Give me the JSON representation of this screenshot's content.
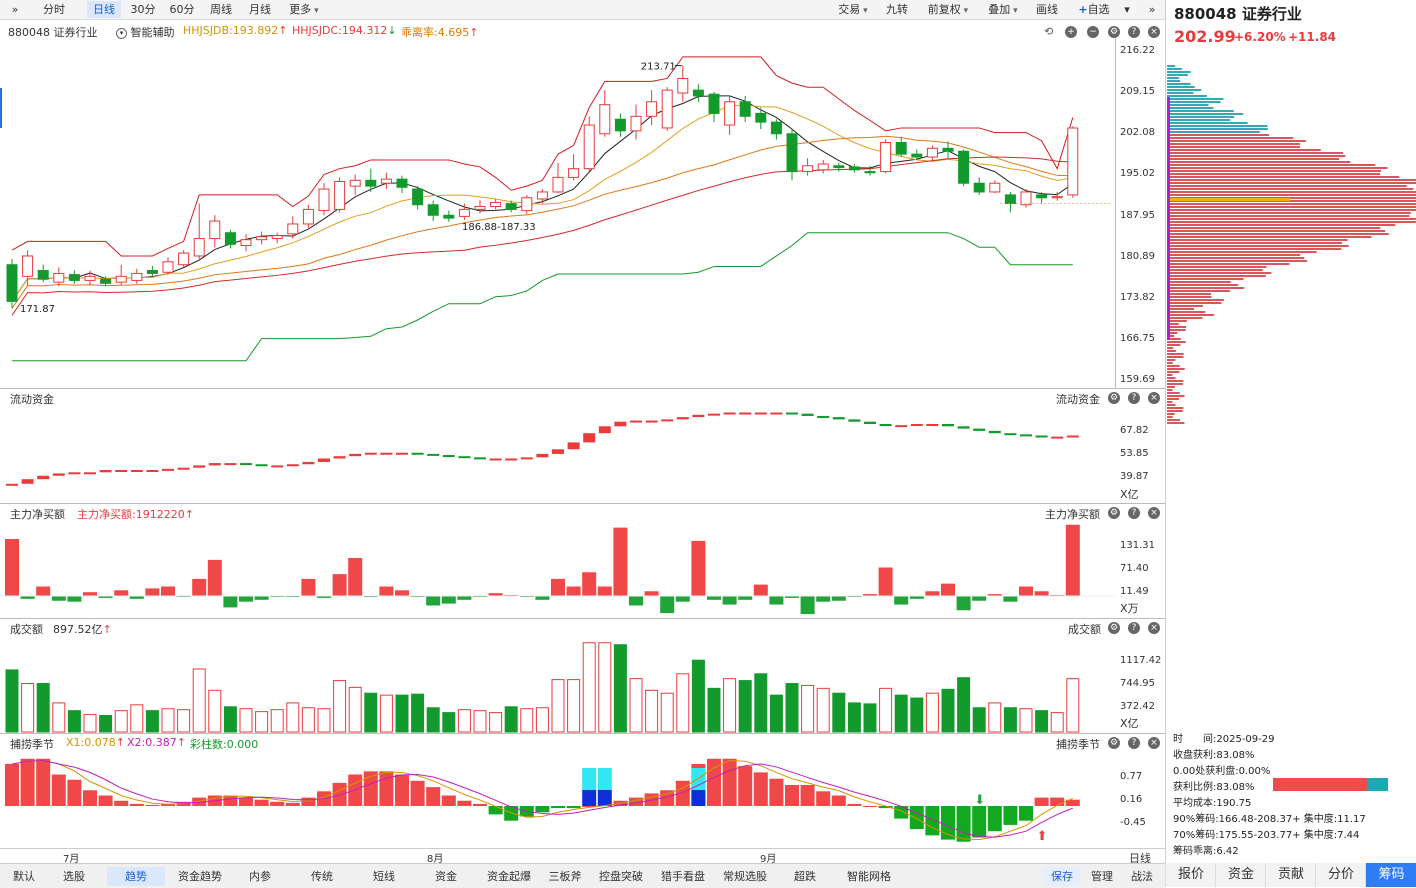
{
  "toolbar": {
    "left_items": [
      "分时",
      "日线",
      "30分",
      "60分",
      "周线",
      "月线",
      "更多"
    ],
    "active": "日线",
    "right_items": [
      "交易",
      "九转",
      "前复权",
      "叠加",
      "画线",
      "自选"
    ]
  },
  "main_chart": {
    "code": "880048",
    "name": "证券行业",
    "assist": "智能辅助",
    "ind1": "HHJSJDB:193.892",
    "ind2": "HHJSJDC:194.312",
    "ind3": "乖离率:4.695",
    "y_labels": [
      "216.22",
      "209.15",
      "202.08",
      "195.02",
      "187.95",
      "180.89",
      "173.82",
      "166.75",
      "159.69"
    ],
    "high_label": "213.71",
    "low_label": "171.87",
    "mid_label": "186.88-187.33"
  },
  "pane_flow": {
    "title": "流动资金",
    "right_title": "流动资金",
    "y_labels": [
      "67.82",
      "53.85",
      "39.87"
    ],
    "unit": "X亿"
  },
  "pane_main_net": {
    "title": "主力净买额",
    "value": "主力净买额:1912220",
    "right_title": "主力净买额",
    "y_labels": [
      "131.31",
      "71.40",
      "11.49"
    ],
    "unit": "X万"
  },
  "pane_turnover": {
    "title": "成交额",
    "value": "897.52亿",
    "right_title": "成交额",
    "y_labels": [
      "1117.42",
      "744.95",
      "372.42"
    ],
    "unit": "X亿"
  },
  "pane_season": {
    "title": "捕捞季节",
    "x1": "X1:0.078",
    "x2": "X2:0.387",
    "bars": "彩柱数:0.000",
    "right_title": "捕捞季节",
    "y_labels": [
      "0.77",
      "0.16",
      "-0.45"
    ]
  },
  "x_months": [
    "7月",
    "8月",
    "9月"
  ],
  "x_period": "日线",
  "bottom_tabs": [
    "默认",
    "选股",
    "趋势",
    "资金趋势",
    "内参",
    "传统",
    "短线",
    "资金",
    "资金起爆",
    "三板斧",
    "控盘突破",
    "猎手看盘",
    "常规选股",
    "超跌",
    "智能网格"
  ],
  "bottom_active": "趋势",
  "bottom_right": [
    "保存",
    "管理",
    "战法"
  ],
  "right_panel": {
    "code": "880048",
    "name": "证券行业",
    "price": "202.99",
    "change_pct": "+6.20%",
    "change": "+11.84",
    "info": [
      "时　　间:2025-09-29",
      "收盘获利:83.08%",
      "0.00处获利盘:0.00%",
      "获利比例:83.08%",
      "平均成本:190.75",
      "90%筹码:166.48-208.37+ 集中度:11.17",
      "70%筹码:175.55-203.77+ 集中度:7.44",
      "筹码乖离:6.42"
    ],
    "tabs": [
      "报价",
      "资金",
      "贡献",
      "分价",
      "筹码"
    ],
    "active_tab": "筹码"
  },
  "colors": {
    "up": "#e83b3b",
    "down": "#139a2c",
    "blue": "#2b6fd6",
    "accent": "#1a5fd0"
  },
  "chart_data": {
    "type": "candlestick",
    "ylim": [
      159.69,
      216.22
    ],
    "candles": [
      [
        179.5,
        173.2,
        180.5,
        172.0
      ],
      [
        177.5,
        181.0,
        182.0,
        176.0
      ],
      [
        178.5,
        177.0,
        179.5,
        176.5
      ],
      [
        176.5,
        178.0,
        179.0,
        175.8
      ],
      [
        177.8,
        176.8,
        178.5,
        176.2
      ],
      [
        176.8,
        177.5,
        178.5,
        176.0
      ],
      [
        177.0,
        176.3,
        177.5,
        175.8
      ],
      [
        176.5,
        177.5,
        179.5,
        176.0
      ],
      [
        176.8,
        178.0,
        178.8,
        176.2
      ],
      [
        178.5,
        178.0,
        179.3,
        177.5
      ],
      [
        178.2,
        180.0,
        180.8,
        177.8
      ],
      [
        179.5,
        181.5,
        182.0,
        179.0
      ],
      [
        181.0,
        184.0,
        190.0,
        180.5
      ],
      [
        184.0,
        187.0,
        188.0,
        182.5
      ],
      [
        185.0,
        183.0,
        185.5,
        182.3
      ],
      [
        182.8,
        183.8,
        184.8,
        181.8
      ],
      [
        183.8,
        184.3,
        185.2,
        183.0
      ],
      [
        184.0,
        184.5,
        185.0,
        183.2
      ],
      [
        184.8,
        186.5,
        187.8,
        184.0
      ],
      [
        186.5,
        189.0,
        189.8,
        185.8
      ],
      [
        188.8,
        192.5,
        193.5,
        188.0
      ],
      [
        189.0,
        193.8,
        194.5,
        188.5
      ],
      [
        193.0,
        194.0,
        195.0,
        191.5
      ],
      [
        194.0,
        193.0,
        196.0,
        192.0
      ],
      [
        193.5,
        194.2,
        195.3,
        192.5
      ],
      [
        194.2,
        192.8,
        194.8,
        191.8
      ],
      [
        192.5,
        189.8,
        193.0,
        189.0
      ],
      [
        189.8,
        188.0,
        190.5,
        187.0
      ],
      [
        188.0,
        187.5,
        188.8,
        186.9
      ],
      [
        187.8,
        189.0,
        190.0,
        187.2
      ],
      [
        189.0,
        189.5,
        190.6,
        188.3
      ],
      [
        189.5,
        190.2,
        190.8,
        189.0
      ],
      [
        190.0,
        189.0,
        190.5,
        188.5
      ],
      [
        188.8,
        191.0,
        191.5,
        188.2
      ],
      [
        190.8,
        192.0,
        192.5,
        190.0
      ],
      [
        192.0,
        194.5,
        197.0,
        191.8
      ],
      [
        194.5,
        196.0,
        198.5,
        194.0
      ],
      [
        196.0,
        203.5,
        205.0,
        195.5
      ],
      [
        202.0,
        207.0,
        209.5,
        201.5
      ],
      [
        204.5,
        202.5,
        205.5,
        201.5
      ],
      [
        202.5,
        205.0,
        207.0,
        201.0
      ],
      [
        205.0,
        207.5,
        209.5,
        203.5
      ],
      [
        203.0,
        209.5,
        210.0,
        202.5
      ],
      [
        209.0,
        211.5,
        213.71,
        207.5
      ],
      [
        209.5,
        208.5,
        210.5,
        207.5
      ],
      [
        208.8,
        205.5,
        209.2,
        204.0
      ],
      [
        203.5,
        207.5,
        208.5,
        201.8
      ],
      [
        207.5,
        205.0,
        208.5,
        204.0
      ],
      [
        205.5,
        204.0,
        206.5,
        202.8
      ],
      [
        204.0,
        202.0,
        204.5,
        201.0
      ],
      [
        202.0,
        195.5,
        202.8,
        194.0
      ],
      [
        195.5,
        196.5,
        197.8,
        194.8
      ],
      [
        195.8,
        196.8,
        197.5,
        195.2
      ],
      [
        196.5,
        196.2,
        197.0,
        195.5
      ],
      [
        196.3,
        195.8,
        196.8,
        195.3
      ],
      [
        195.5,
        195.3,
        196.5,
        194.8
      ],
      [
        195.5,
        200.5,
        201.0,
        195.2
      ],
      [
        200.5,
        198.5,
        201.5,
        198.0
      ],
      [
        198.5,
        198.0,
        199.3,
        197.5
      ],
      [
        198.0,
        199.5,
        200.0,
        197.5
      ],
      [
        199.5,
        199.0,
        200.7,
        197.8
      ],
      [
        199.0,
        193.5,
        199.3,
        193.0
      ],
      [
        193.5,
        192.0,
        194.5,
        191.5
      ],
      [
        192.0,
        193.5,
        194.0,
        191.8
      ],
      [
        191.5,
        190.0,
        192.0,
        188.5
      ],
      [
        189.8,
        192.0,
        192.5,
        189.3
      ],
      [
        191.5,
        191.0,
        192.0,
        190.0
      ],
      [
        191.0,
        191.2,
        192.0,
        190.5
      ],
      [
        191.5,
        202.99,
        203.3,
        191.0
      ]
    ]
  }
}
